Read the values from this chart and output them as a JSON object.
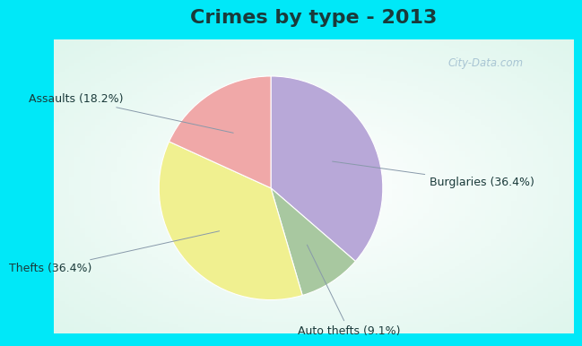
{
  "title": "Crimes by type - 2013",
  "slices": [
    {
      "label": "Burglaries (36.4%)",
      "value": 36.4,
      "color": "#b8a8d8"
    },
    {
      "label": "Auto thefts (9.1%)",
      "value": 9.1,
      "color": "#a8c8a0"
    },
    {
      "label": "Thefts (36.4%)",
      "value": 36.4,
      "color": "#f0f090"
    },
    {
      "label": "Assaults (18.2%)",
      "value": 18.2,
      "color": "#f0a8a8"
    }
  ],
  "bg_cyan": "#00e8f8",
  "bg_inner": "#d8f0e8",
  "title_fontsize": 16,
  "title_color": "#1a3a3a",
  "label_fontsize": 9,
  "border_width": 10
}
